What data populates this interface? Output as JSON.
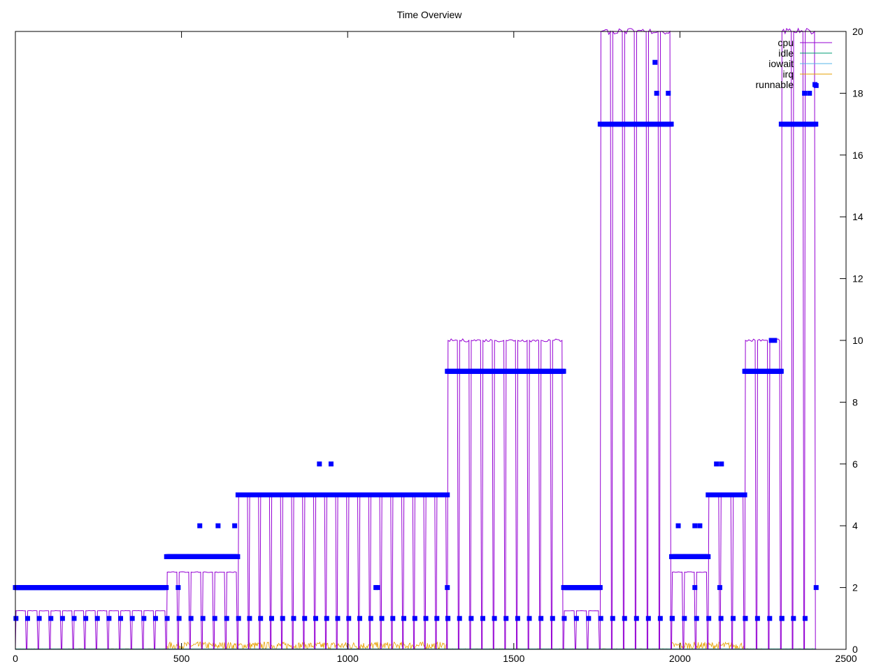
{
  "chart_data": {
    "type": "line",
    "title": "Time Overview",
    "xlabel": "",
    "ylabel": "",
    "xlim": [
      0,
      2500
    ],
    "ylim": [
      0,
      20
    ],
    "x_ticks": [
      0,
      500,
      1000,
      1500,
      2000,
      2500
    ],
    "y_ticks": [
      0,
      2,
      4,
      6,
      8,
      10,
      12,
      14,
      16,
      18,
      20
    ],
    "y_axis_side": "right",
    "grid": false,
    "legend_position": "top-right",
    "colors": {
      "cpu": "#9400d3",
      "idle": "#009e73",
      "iowait": "#56b4e9",
      "irq": "#e69f00",
      "runnable": "#0000ff"
    },
    "phases": [
      {
        "x0": 0,
        "x1": 455,
        "cpu_peak": 1.25,
        "runnable_main": 2,
        "runnable_low": 1,
        "cycles": 13
      },
      {
        "x0": 455,
        "x1": 670,
        "cpu_peak": 2.5,
        "runnable_main": 3,
        "runnable_low": 1,
        "cycles": 6
      },
      {
        "x0": 670,
        "x1": 1300,
        "cpu_peak": 5,
        "runnable_main": 5,
        "runnable_low": 1,
        "cycles": 19
      },
      {
        "x0": 1300,
        "x1": 1650,
        "cpu_peak": 10,
        "runnable_main": 9,
        "runnable_low": 1,
        "cycles": 10
      },
      {
        "x0": 1650,
        "x1": 1760,
        "cpu_peak": 1.25,
        "runnable_main": 2,
        "runnable_low": 1,
        "cycles": 3
      },
      {
        "x0": 1760,
        "x1": 1975,
        "cpu_peak": 20,
        "runnable_main": 17,
        "runnable_low": 1,
        "cycles": 6
      },
      {
        "x0": 1975,
        "x1": 2085,
        "cpu_peak": 2.5,
        "runnable_main": 3,
        "runnable_low": 1,
        "cycles": 3
      },
      {
        "x0": 2085,
        "x1": 2195,
        "cpu_peak": 5,
        "runnable_main": 5,
        "runnable_low": 1,
        "cycles": 3
      },
      {
        "x0": 2195,
        "x1": 2305,
        "cpu_peak": 10,
        "runnable_main": 9,
        "runnable_low": 1,
        "cycles": 3
      },
      {
        "x0": 2305,
        "x1": 2410,
        "cpu_peak": 20,
        "runnable_main": 17,
        "runnable_low": 1,
        "cycles": 3
      }
    ],
    "runnable_outliers": [
      {
        "x": 490,
        "y": 2
      },
      {
        "x": 555,
        "y": 4
      },
      {
        "x": 610,
        "y": 4
      },
      {
        "x": 660,
        "y": 4
      },
      {
        "x": 915,
        "y": 6
      },
      {
        "x": 950,
        "y": 6
      },
      {
        "x": 1085,
        "y": 2
      },
      {
        "x": 1090,
        "y": 2
      },
      {
        "x": 1300,
        "y": 2
      },
      {
        "x": 1925,
        "y": 19
      },
      {
        "x": 1930,
        "y": 18
      },
      {
        "x": 1965,
        "y": 18
      },
      {
        "x": 1995,
        "y": 4
      },
      {
        "x": 2045,
        "y": 4
      },
      {
        "x": 2060,
        "y": 4
      },
      {
        "x": 2045,
        "y": 2
      },
      {
        "x": 2110,
        "y": 6
      },
      {
        "x": 2125,
        "y": 6
      },
      {
        "x": 2120,
        "y": 2
      },
      {
        "x": 2275,
        "y": 10
      },
      {
        "x": 2285,
        "y": 10
      },
      {
        "x": 2375,
        "y": 18
      },
      {
        "x": 2390,
        "y": 18
      },
      {
        "x": 2410,
        "y": 18.25
      },
      {
        "x": 2410,
        "y": 2
      }
    ],
    "irq_range": [
      0,
      0.3
    ],
    "series": [
      {
        "name": "cpu",
        "style": "line"
      },
      {
        "name": "idle",
        "style": "line"
      },
      {
        "name": "iowait",
        "style": "line"
      },
      {
        "name": "irq",
        "style": "line"
      },
      {
        "name": "runnable",
        "style": "points"
      }
    ]
  }
}
